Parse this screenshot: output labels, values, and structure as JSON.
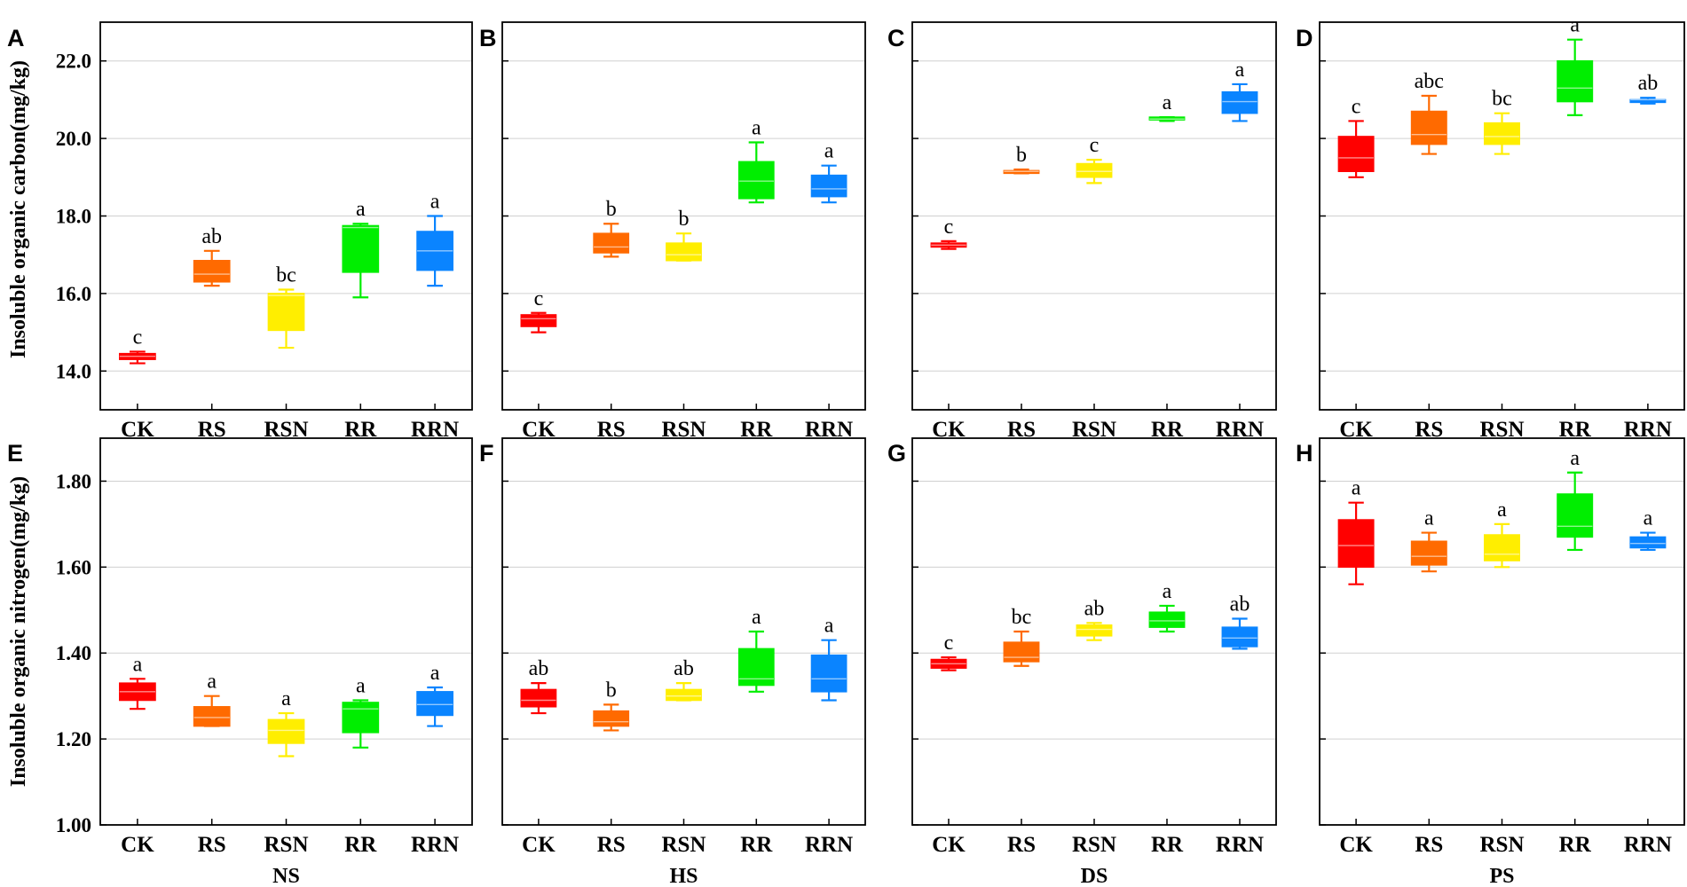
{
  "chart_data": {
    "type": "box",
    "categories": [
      "CK",
      "RS",
      "RSN",
      "RR",
      "RRN"
    ],
    "colors": {
      "CK": "#ff0000",
      "RS": "#ff6a00",
      "RSN": "#ffee00",
      "RR": "#00ee00",
      "RRN": "#0a84ff"
    },
    "rows": [
      {
        "ylabel": "Insoluble organic carbon(mg/kg)",
        "ylim": [
          13.0,
          23.0
        ],
        "yticks": [
          14.0,
          16.0,
          18.0,
          20.0,
          22.0
        ],
        "ytick_labels": [
          "14.0",
          "16.0",
          "18.0",
          "20.0",
          "22.0"
        ]
      },
      {
        "ylabel": "Insoluble organic nitrogen(mg/kg)",
        "ylim": [
          1.0,
          1.9
        ],
        "yticks": [
          1.0,
          1.2,
          1.4,
          1.6,
          1.8
        ],
        "ytick_labels": [
          "1.00",
          "1.20",
          "1.40",
          "1.60",
          "1.80"
        ]
      }
    ],
    "panels": [
      {
        "letter": "A",
        "row": 0,
        "col": 0,
        "group": "NS",
        "boxes": [
          {
            "min": 14.2,
            "q1": 14.3,
            "median": 14.38,
            "q3": 14.45,
            "max": 14.5,
            "sig": "c"
          },
          {
            "min": 16.2,
            "q1": 16.3,
            "median": 16.5,
            "q3": 16.85,
            "max": 17.1,
            "sig": "ab"
          },
          {
            "min": 14.6,
            "q1": 15.05,
            "median": 15.95,
            "q3": 16.0,
            "max": 16.1,
            "sig": "bc"
          },
          {
            "min": 15.9,
            "q1": 16.55,
            "median": 17.7,
            "q3": 17.75,
            "max": 17.8,
            "sig": "a"
          },
          {
            "min": 16.2,
            "q1": 16.6,
            "median": 17.1,
            "q3": 17.6,
            "max": 18.0,
            "sig": "a"
          }
        ]
      },
      {
        "letter": "B",
        "row": 0,
        "col": 1,
        "group": "HS",
        "boxes": [
          {
            "min": 15.0,
            "q1": 15.15,
            "median": 15.35,
            "q3": 15.45,
            "max": 15.5,
            "sig": "c"
          },
          {
            "min": 16.95,
            "q1": 17.05,
            "median": 17.2,
            "q3": 17.55,
            "max": 17.8,
            "sig": "b"
          },
          {
            "min": 16.85,
            "q1": 16.85,
            "median": 17.0,
            "q3": 17.3,
            "max": 17.55,
            "sig": "b"
          },
          {
            "min": 18.35,
            "q1": 18.45,
            "median": 18.9,
            "q3": 19.4,
            "max": 19.9,
            "sig": "a"
          },
          {
            "min": 18.35,
            "q1": 18.5,
            "median": 18.7,
            "q3": 19.05,
            "max": 19.3,
            "sig": "a"
          }
        ]
      },
      {
        "letter": "C",
        "row": 0,
        "col": 2,
        "group": "DS",
        "boxes": [
          {
            "min": 17.15,
            "q1": 17.2,
            "median": 17.25,
            "q3": 17.3,
            "max": 17.35,
            "sig": "c"
          },
          {
            "min": 19.1,
            "q1": 19.12,
            "median": 19.15,
            "q3": 19.17,
            "max": 19.2,
            "sig": "b"
          },
          {
            "min": 18.85,
            "q1": 19.0,
            "median": 19.15,
            "q3": 19.35,
            "max": 19.45,
            "sig": "c"
          },
          {
            "min": 20.45,
            "q1": 20.48,
            "median": 20.5,
            "q3": 20.55,
            "max": 20.55,
            "sig": "a"
          },
          {
            "min": 20.45,
            "q1": 20.65,
            "median": 20.95,
            "q3": 21.2,
            "max": 21.4,
            "sig": "a"
          }
        ]
      },
      {
        "letter": "D",
        "row": 0,
        "col": 3,
        "group": "PS",
        "boxes": [
          {
            "min": 19.0,
            "q1": 19.15,
            "median": 19.5,
            "q3": 20.05,
            "max": 20.45,
            "sig": "c"
          },
          {
            "min": 19.6,
            "q1": 19.85,
            "median": 20.1,
            "q3": 20.7,
            "max": 21.1,
            "sig": "abc"
          },
          {
            "min": 19.6,
            "q1": 19.85,
            "median": 20.05,
            "q3": 20.4,
            "max": 20.65,
            "sig": "bc"
          },
          {
            "min": 20.6,
            "q1": 20.95,
            "median": 21.3,
            "q3": 22.0,
            "max": 22.55,
            "sig": "a"
          },
          {
            "min": 20.9,
            "q1": 20.95,
            "median": 21.0,
            "q3": 21.0,
            "max": 21.05,
            "sig": "ab"
          }
        ]
      },
      {
        "letter": "E",
        "row": 1,
        "col": 0,
        "group": "NS",
        "boxes": [
          {
            "min": 1.27,
            "q1": 1.29,
            "median": 1.31,
            "q3": 1.33,
            "max": 1.34,
            "sig": "a"
          },
          {
            "min": 1.23,
            "q1": 1.23,
            "median": 1.25,
            "q3": 1.275,
            "max": 1.3,
            "sig": "a"
          },
          {
            "min": 1.16,
            "q1": 1.19,
            "median": 1.22,
            "q3": 1.245,
            "max": 1.26,
            "sig": "a"
          },
          {
            "min": 1.18,
            "q1": 1.215,
            "median": 1.27,
            "q3": 1.285,
            "max": 1.29,
            "sig": "a"
          },
          {
            "min": 1.23,
            "q1": 1.255,
            "median": 1.28,
            "q3": 1.31,
            "max": 1.32,
            "sig": "a"
          }
        ]
      },
      {
        "letter": "F",
        "row": 1,
        "col": 1,
        "group": "HS",
        "boxes": [
          {
            "min": 1.26,
            "q1": 1.275,
            "median": 1.29,
            "q3": 1.315,
            "max": 1.33,
            "sig": "ab"
          },
          {
            "min": 1.22,
            "q1": 1.23,
            "median": 1.24,
            "q3": 1.265,
            "max": 1.28,
            "sig": "b"
          },
          {
            "min": 1.29,
            "q1": 1.29,
            "median": 1.3,
            "q3": 1.315,
            "max": 1.33,
            "sig": "ab"
          },
          {
            "min": 1.31,
            "q1": 1.325,
            "median": 1.34,
            "q3": 1.41,
            "max": 1.45,
            "sig": "a"
          },
          {
            "min": 1.29,
            "q1": 1.31,
            "median": 1.34,
            "q3": 1.395,
            "max": 1.43,
            "sig": "a"
          }
        ]
      },
      {
        "letter": "G",
        "row": 1,
        "col": 2,
        "group": "DS",
        "boxes": [
          {
            "min": 1.36,
            "q1": 1.365,
            "median": 1.375,
            "q3": 1.385,
            "max": 1.39,
            "sig": "c"
          },
          {
            "min": 1.37,
            "q1": 1.38,
            "median": 1.39,
            "q3": 1.425,
            "max": 1.45,
            "sig": "bc"
          },
          {
            "min": 1.43,
            "q1": 1.44,
            "median": 1.455,
            "q3": 1.465,
            "max": 1.47,
            "sig": "ab"
          },
          {
            "min": 1.45,
            "q1": 1.46,
            "median": 1.475,
            "q3": 1.495,
            "max": 1.51,
            "sig": "a"
          },
          {
            "min": 1.41,
            "q1": 1.415,
            "median": 1.435,
            "q3": 1.46,
            "max": 1.48,
            "sig": "ab"
          }
        ]
      },
      {
        "letter": "H",
        "row": 1,
        "col": 3,
        "group": "PS",
        "boxes": [
          {
            "min": 1.56,
            "q1": 1.6,
            "median": 1.65,
            "q3": 1.71,
            "max": 1.75,
            "sig": "a"
          },
          {
            "min": 1.59,
            "q1": 1.605,
            "median": 1.625,
            "q3": 1.66,
            "max": 1.68,
            "sig": "a"
          },
          {
            "min": 1.6,
            "q1": 1.615,
            "median": 1.63,
            "q3": 1.675,
            "max": 1.7,
            "sig": "a"
          },
          {
            "min": 1.64,
            "q1": 1.67,
            "median": 1.695,
            "q3": 1.77,
            "max": 1.82,
            "sig": "a"
          },
          {
            "min": 1.64,
            "q1": 1.645,
            "median": 1.655,
            "q3": 1.67,
            "max": 1.68,
            "sig": "a"
          }
        ]
      }
    ]
  }
}
